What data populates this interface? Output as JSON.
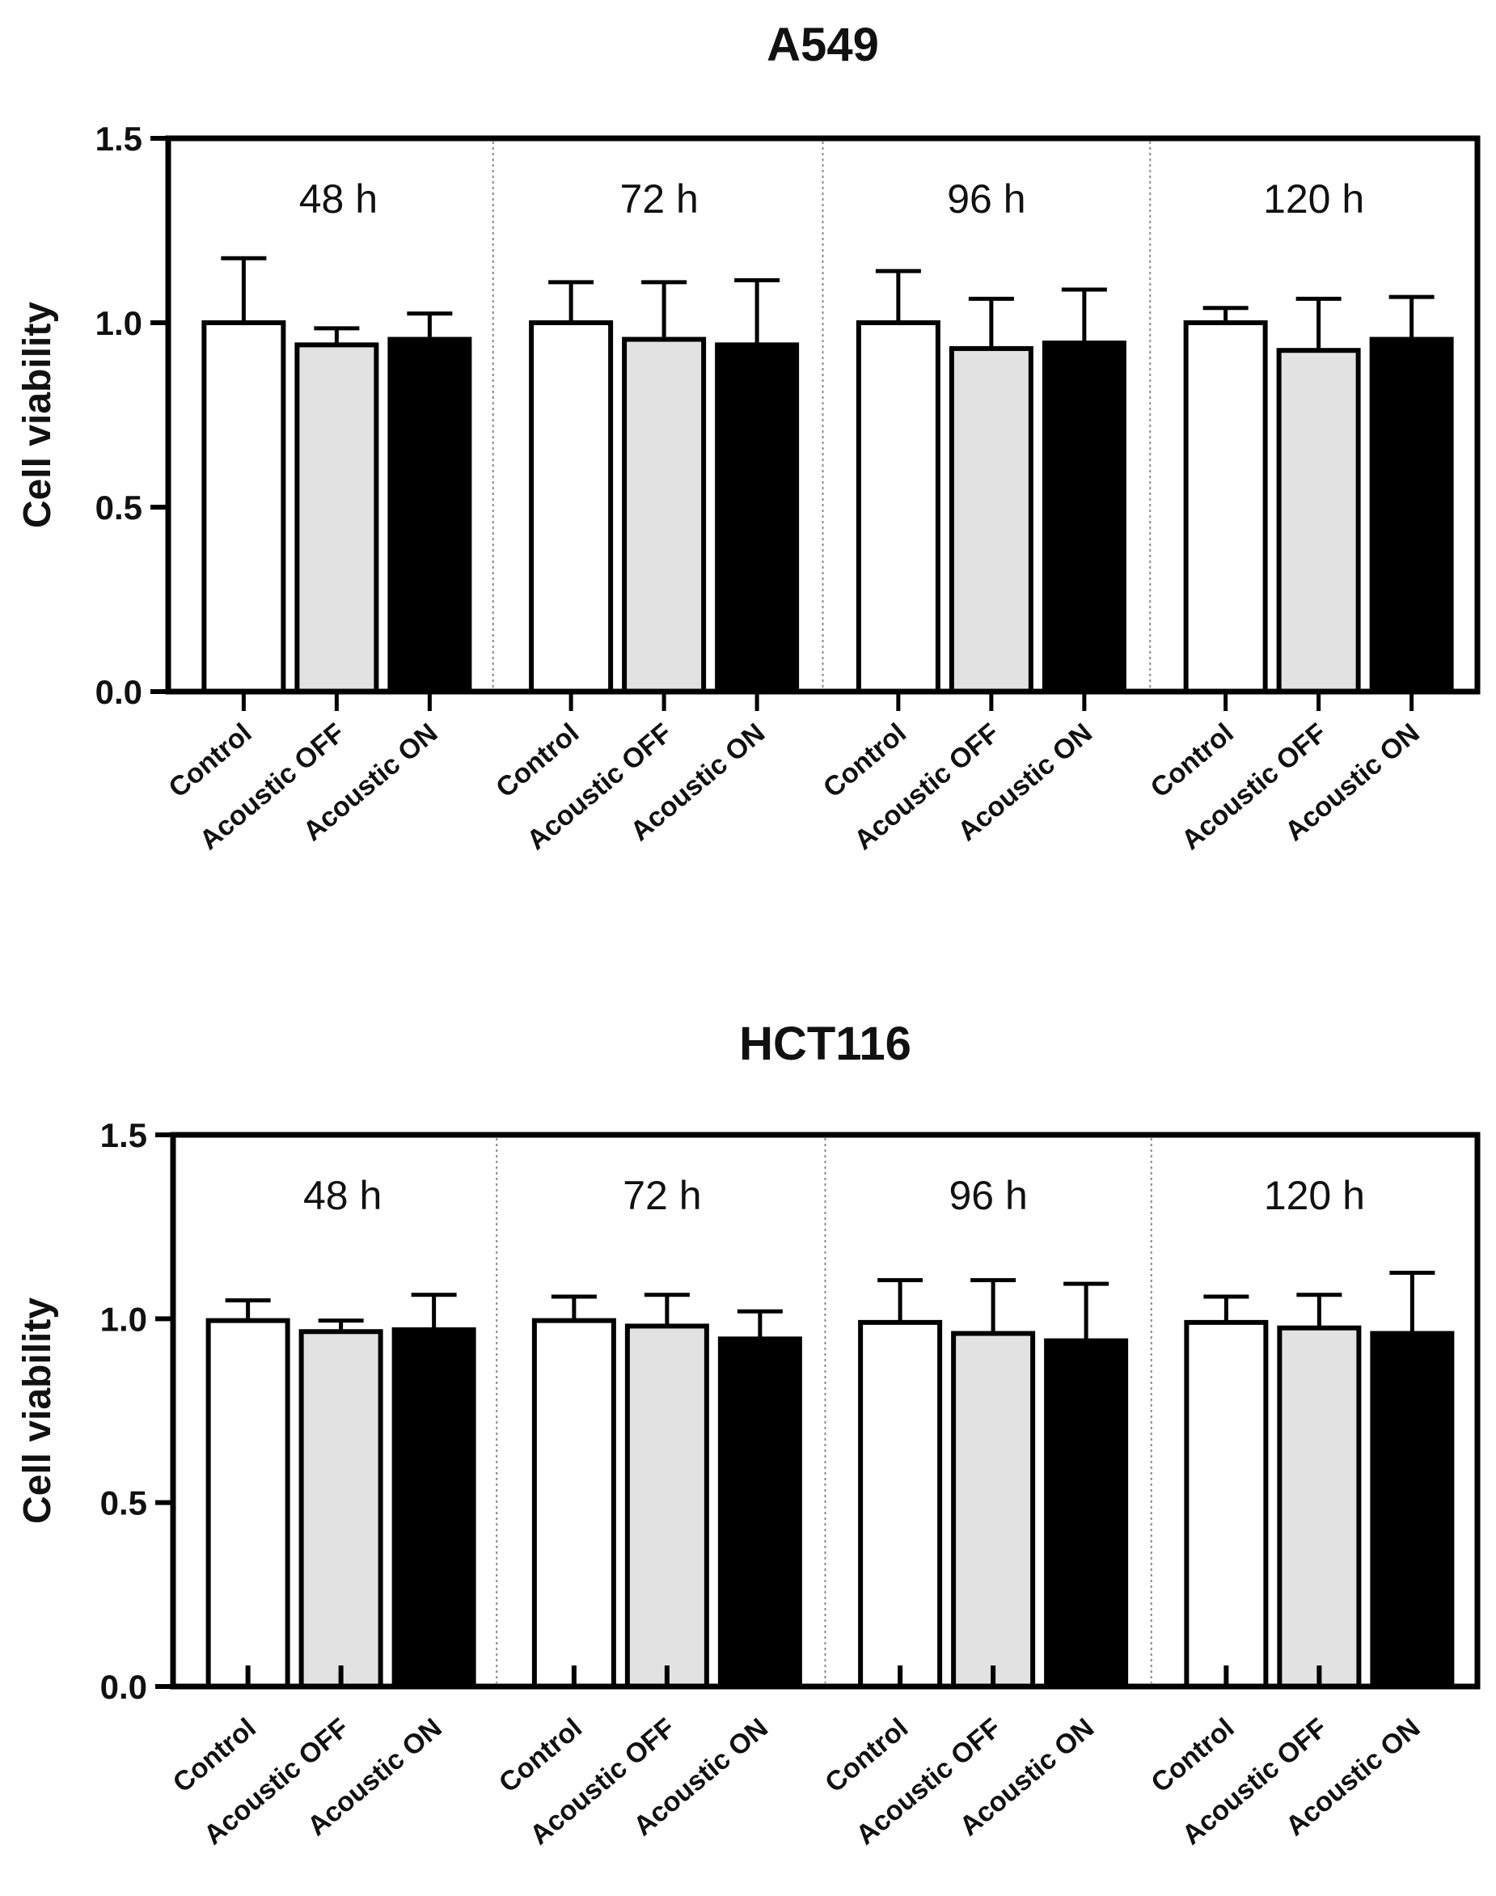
{
  "chart_data": [
    {
      "type": "bar",
      "title": "A549",
      "xlabel": "",
      "ylabel": "Cell viability",
      "ylim": [
        0,
        1.5
      ],
      "yticks": [
        "0.0",
        "0.5",
        "1.0",
        "1.5"
      ],
      "grid": false,
      "groups": [
        {
          "label": "48 h",
          "categories": [
            "Control",
            "Acoustic OFF",
            "Acoustic ON"
          ],
          "values": [
            1.0,
            0.94,
            0.955
          ],
          "errors": [
            0.175,
            0.045,
            0.07
          ]
        },
        {
          "label": "72 h",
          "categories": [
            "Control",
            "Acoustic OFF",
            "Acoustic ON"
          ],
          "values": [
            1.0,
            0.955,
            0.94
          ],
          "errors": [
            0.11,
            0.155,
            0.175
          ]
        },
        {
          "label": "96 h",
          "categories": [
            "Control",
            "Acoustic OFF",
            "Acoustic ON"
          ],
          "values": [
            1.0,
            0.93,
            0.945
          ],
          "errors": [
            0.14,
            0.135,
            0.145
          ]
        },
        {
          "label": "120 h",
          "categories": [
            "Control",
            "Acoustic OFF",
            "Acoustic ON"
          ],
          "values": [
            1.0,
            0.925,
            0.955
          ],
          "errors": [
            0.04,
            0.14,
            0.115
          ]
        }
      ]
    },
    {
      "type": "bar",
      "title": "HCT116",
      "xlabel": "",
      "ylabel": "Cell viability",
      "ylim": [
        0,
        1.5
      ],
      "yticks": [
        "0.0",
        "0.5",
        "1.0",
        "1.5"
      ],
      "grid": false,
      "groups": [
        {
          "label": "48 h",
          "categories": [
            "Control",
            "Acoustic OFF",
            "Acoustic ON"
          ],
          "values": [
            0.995,
            0.965,
            0.97
          ],
          "errors": [
            0.055,
            0.03,
            0.095
          ]
        },
        {
          "label": "72 h",
          "categories": [
            "Control",
            "Acoustic OFF",
            "Acoustic ON"
          ],
          "values": [
            0.995,
            0.98,
            0.945
          ],
          "errors": [
            0.065,
            0.085,
            0.075
          ]
        },
        {
          "label": "96 h",
          "categories": [
            "Control",
            "Acoustic OFF",
            "Acoustic ON"
          ],
          "values": [
            0.99,
            0.96,
            0.94
          ],
          "errors": [
            0.115,
            0.145,
            0.155
          ]
        },
        {
          "label": "120 h",
          "categories": [
            "Control",
            "Acoustic OFF",
            "Acoustic ON"
          ],
          "values": [
            0.99,
            0.975,
            0.96
          ],
          "errors": [
            0.07,
            0.09,
            0.165
          ]
        }
      ]
    }
  ],
  "colors": {
    "control": "#ffffff",
    "acoustic_off": "#e2e2e2",
    "acoustic_on": "#000000",
    "axis": "#000000",
    "separator": "#888888"
  }
}
